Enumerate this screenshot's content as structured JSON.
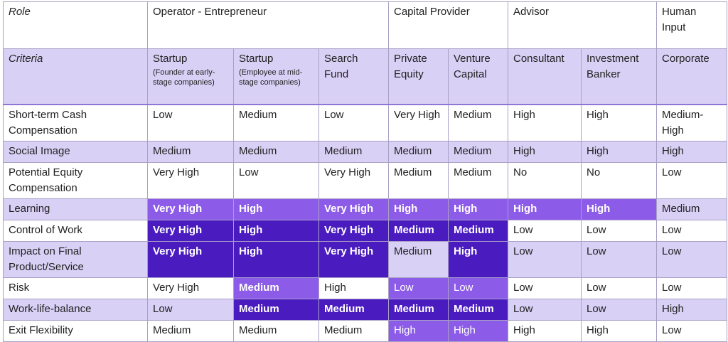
{
  "colors": {
    "white": "#ffffff",
    "light": "#d9d0f5",
    "mid": "#8c5be8",
    "dark": "#4a1cc0",
    "border": "#a9a0c6"
  },
  "header": {
    "role_label": "Role",
    "groups": [
      {
        "label": "Operator - Entrepreneur",
        "span": 3
      },
      {
        "label": "Capital Provider",
        "span": 2
      },
      {
        "label": "Advisor",
        "span": 2
      },
      {
        "label": "Human Input",
        "span": 1
      }
    ]
  },
  "criteria_row": {
    "label": "Criteria",
    "columns": [
      {
        "title": "Startup",
        "sub": "(Founder at early-stage companies)"
      },
      {
        "title": "Startup",
        "sub": "(Employee at mid-stage companies)"
      },
      {
        "title": "Search Fund",
        "sub": ""
      },
      {
        "title": "Private Equity",
        "sub": ""
      },
      {
        "title": "Venture Capital",
        "sub": ""
      },
      {
        "title": "Consultant",
        "sub": ""
      },
      {
        "title": "Investment Banker",
        "sub": ""
      },
      {
        "title": "Corporate",
        "sub": ""
      }
    ]
  },
  "rows": [
    {
      "label": "Short-term Cash Compensation",
      "label_bg": "white",
      "cells": [
        {
          "v": "Low",
          "bg": "white",
          "bold": false
        },
        {
          "v": "Medium",
          "bg": "white",
          "bold": false
        },
        {
          "v": "Low",
          "bg": "white",
          "bold": false
        },
        {
          "v": "Very High",
          "bg": "white",
          "bold": false
        },
        {
          "v": "Medium",
          "bg": "white",
          "bold": false
        },
        {
          "v": "High",
          "bg": "white",
          "bold": false
        },
        {
          "v": "High",
          "bg": "white",
          "bold": false
        },
        {
          "v": "Medium-High",
          "bg": "white",
          "bold": false
        }
      ]
    },
    {
      "label": "Social Image",
      "label_bg": "light",
      "cells": [
        {
          "v": "Medium",
          "bg": "light",
          "bold": false
        },
        {
          "v": "Medium",
          "bg": "light",
          "bold": false
        },
        {
          "v": "Medium",
          "bg": "light",
          "bold": false
        },
        {
          "v": "Medium",
          "bg": "light",
          "bold": false
        },
        {
          "v": "Medium",
          "bg": "light",
          "bold": false
        },
        {
          "v": "High",
          "bg": "light",
          "bold": false
        },
        {
          "v": "High",
          "bg": "light",
          "bold": false
        },
        {
          "v": "High",
          "bg": "light",
          "bold": false
        }
      ]
    },
    {
      "label": "Potential Equity Compensation",
      "label_bg": "white",
      "cells": [
        {
          "v": "Very High",
          "bg": "white",
          "bold": false
        },
        {
          "v": "Low",
          "bg": "white",
          "bold": false
        },
        {
          "v": "Very High",
          "bg": "white",
          "bold": false
        },
        {
          "v": "Medium",
          "bg": "white",
          "bold": false
        },
        {
          "v": "Medium",
          "bg": "white",
          "bold": false
        },
        {
          "v": "No",
          "bg": "white",
          "bold": false
        },
        {
          "v": "No",
          "bg": "white",
          "bold": false
        },
        {
          "v": "Low",
          "bg": "white",
          "bold": false
        }
      ]
    },
    {
      "label": "Learning",
      "label_bg": "light",
      "cells": [
        {
          "v": "Very High",
          "bg": "mid",
          "bold": true
        },
        {
          "v": "High",
          "bg": "mid",
          "bold": true
        },
        {
          "v": "Very High",
          "bg": "mid",
          "bold": true
        },
        {
          "v": "High",
          "bg": "mid",
          "bold": true
        },
        {
          "v": "High",
          "bg": "mid",
          "bold": true
        },
        {
          "v": "High",
          "bg": "mid",
          "bold": true
        },
        {
          "v": "High",
          "bg": "mid",
          "bold": true
        },
        {
          "v": "Medium",
          "bg": "light",
          "bold": false
        }
      ]
    },
    {
      "label": "Control of Work",
      "label_bg": "white",
      "cells": [
        {
          "v": "Very High",
          "bg": "dark",
          "bold": true
        },
        {
          "v": "High",
          "bg": "dark",
          "bold": true
        },
        {
          "v": "Very High",
          "bg": "dark",
          "bold": true
        },
        {
          "v": "Medium",
          "bg": "dark",
          "bold": true
        },
        {
          "v": "Medium",
          "bg": "dark",
          "bold": true
        },
        {
          "v": "Low",
          "bg": "white",
          "bold": false
        },
        {
          "v": "Low",
          "bg": "white",
          "bold": false
        },
        {
          "v": "Low",
          "bg": "white",
          "bold": false
        }
      ]
    },
    {
      "label": "Impact on Final Product/Service",
      "label_bg": "light",
      "cells": [
        {
          "v": "Very High",
          "bg": "dark",
          "bold": true
        },
        {
          "v": "High",
          "bg": "dark",
          "bold": true
        },
        {
          "v": "Very High",
          "bg": "dark",
          "bold": true
        },
        {
          "v": "Medium",
          "bg": "light",
          "bold": false
        },
        {
          "v": "High",
          "bg": "dark",
          "bold": true
        },
        {
          "v": "Low",
          "bg": "light",
          "bold": false
        },
        {
          "v": "Low",
          "bg": "light",
          "bold": false
        },
        {
          "v": "Low",
          "bg": "light",
          "bold": false
        }
      ]
    },
    {
      "label": "Risk",
      "label_bg": "white",
      "cells": [
        {
          "v": "Very High",
          "bg": "white",
          "bold": false
        },
        {
          "v": "Medium",
          "bg": "mid",
          "bold": true
        },
        {
          "v": "High",
          "bg": "white",
          "bold": false
        },
        {
          "v": "Low",
          "bg": "mid",
          "bold": false
        },
        {
          "v": "Low",
          "bg": "mid",
          "bold": false
        },
        {
          "v": "Low",
          "bg": "white",
          "bold": false
        },
        {
          "v": "Low",
          "bg": "white",
          "bold": false
        },
        {
          "v": "Low",
          "bg": "white",
          "bold": false
        }
      ]
    },
    {
      "label": "Work-life-balance",
      "label_bg": "light",
      "cells": [
        {
          "v": "Low",
          "bg": "light",
          "bold": false
        },
        {
          "v": "Medium",
          "bg": "dark",
          "bold": true
        },
        {
          "v": "Medium",
          "bg": "dark",
          "bold": true
        },
        {
          "v": "Medium",
          "bg": "dark",
          "bold": true
        },
        {
          "v": "Medium",
          "bg": "dark",
          "bold": true
        },
        {
          "v": "Low",
          "bg": "light",
          "bold": false
        },
        {
          "v": "Low",
          "bg": "light",
          "bold": false
        },
        {
          "v": "High",
          "bg": "light",
          "bold": false
        }
      ]
    },
    {
      "label": "Exit Flexibility",
      "label_bg": "white",
      "cells": [
        {
          "v": "Medium",
          "bg": "white",
          "bold": false
        },
        {
          "v": "Medium",
          "bg": "white",
          "bold": false
        },
        {
          "v": "Medium",
          "bg": "white",
          "bold": false
        },
        {
          "v": "High",
          "bg": "mid",
          "bold": false
        },
        {
          "v": "High",
          "bg": "mid",
          "bold": false
        },
        {
          "v": "High",
          "bg": "white",
          "bold": false
        },
        {
          "v": "High",
          "bg": "white",
          "bold": false
        },
        {
          "v": "Low",
          "bg": "white",
          "bold": false
        }
      ]
    }
  ]
}
